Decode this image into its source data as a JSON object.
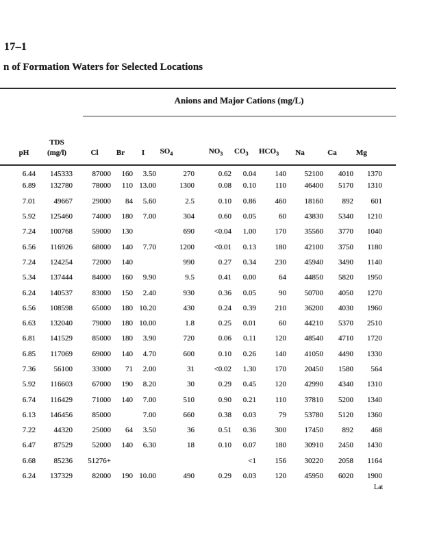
{
  "page": {
    "table_label": "17–1",
    "title": "n of Formation Waters for Selected Locations",
    "spanner": "Anions and Major Cations (mg/L)",
    "bottom_partial": "Lat"
  },
  "table": {
    "columns": [
      {
        "label": "pH"
      },
      {
        "label": "TDS",
        "label2": "(mg/l)"
      },
      {
        "label": "Cl"
      },
      {
        "label": "Br"
      },
      {
        "label": "I"
      },
      {
        "label": "SO",
        "sub": "4"
      },
      {
        "label": "NO",
        "sub": "3"
      },
      {
        "label": "CO",
        "sub": "3"
      },
      {
        "label": "HCO",
        "sub": "3"
      },
      {
        "label": "Na"
      },
      {
        "label": "Ca"
      },
      {
        "label": "Mg"
      }
    ],
    "rows": [
      [
        "6.44",
        "145333",
        "87000",
        "160",
        "3.50",
        "270",
        "0.62",
        "0.04",
        "140",
        "52100",
        "4010",
        "1370"
      ],
      [
        "6.89",
        "132780",
        "78000",
        "110",
        "13.00",
        "1300",
        "0.08",
        "0.10",
        "110",
        "46400",
        "5170",
        "1310"
      ],
      [
        "7.01",
        "49667",
        "29000",
        "84",
        "5.60",
        "2.5",
        "0.10",
        "0.86",
        "460",
        "18160",
        "892",
        "601"
      ],
      [
        "5.92",
        "125460",
        "74000",
        "180",
        "7.00",
        "304",
        "0.60",
        "0.05",
        "60",
        "43830",
        "5340",
        "1210"
      ],
      [
        "7.24",
        "100768",
        "59000",
        "130",
        "",
        "690",
        "<0.04",
        "1.00",
        "170",
        "35560",
        "3770",
        "1040"
      ],
      [
        "6.56",
        "116926",
        "68000",
        "140",
        "7.70",
        "1200",
        "<0.01",
        "0.13",
        "180",
        "42100",
        "3750",
        "1180"
      ],
      [
        "7.24",
        "124254",
        "72000",
        "140",
        "",
        "990",
        "0.27",
        "0.34",
        "230",
        "45940",
        "3490",
        "1140"
      ],
      [
        "5.34",
        "137444",
        "84000",
        "160",
        "9.90",
        "9.5",
        "0.41",
        "0.00",
        "64",
        "44850",
        "5820",
        "1950"
      ],
      [
        "6.24",
        "140537",
        "83000",
        "150",
        "2.40",
        "930",
        "0.36",
        "0.05",
        "90",
        "50700",
        "4050",
        "1270"
      ],
      [
        "6.56",
        "108598",
        "65000",
        "180",
        "10.20",
        "430",
        "0.24",
        "0.39",
        "210",
        "36200",
        "4030",
        "1960"
      ],
      [
        "6.63",
        "132040",
        "79000",
        "180",
        "10.00",
        "1.8",
        "0.25",
        "0.01",
        "60",
        "44210",
        "5370",
        "2510"
      ],
      [
        "6.81",
        "141529",
        "85000",
        "180",
        "3.90",
        "720",
        "0.06",
        "0.11",
        "120",
        "48540",
        "4710",
        "1720"
      ],
      [
        "6.85",
        "117069",
        "69000",
        "140",
        "4.70",
        "600",
        "0.10",
        "0.26",
        "140",
        "41050",
        "4490",
        "1330"
      ],
      [
        "7.36",
        "56100",
        "33000",
        "71",
        "2.00",
        "31",
        "<0.02",
        "1.30",
        "170",
        "20450",
        "1580",
        "564"
      ],
      [
        "5.92",
        "116603",
        "67000",
        "190",
        "8.20",
        "30",
        "0.29",
        "0.45",
        "120",
        "42990",
        "4340",
        "1310"
      ],
      [
        "6.74",
        "116429",
        "71000",
        "140",
        "7.00",
        "510",
        "0.90",
        "0.21",
        "110",
        "37810",
        "5200",
        "1340"
      ],
      [
        "6.13",
        "146456",
        "85000",
        "",
        "7.00",
        "660",
        "0.38",
        "0.03",
        "79",
        "53780",
        "5120",
        "1360"
      ],
      [
        "7.22",
        "44320",
        "25000",
        "64",
        "3.50",
        "36",
        "0.51",
        "0.36",
        "300",
        "17450",
        "892",
        "468"
      ],
      [
        "6.47",
        "87529",
        "52000",
        "140",
        "6.30",
        "18",
        "0.10",
        "0.07",
        "180",
        "30910",
        "2450",
        "1430"
      ],
      [
        "6.68",
        "85236",
        "51276+",
        "",
        "",
        "",
        "",
        "<1",
        "156",
        "30220",
        "2058",
        "1164"
      ],
      [
        "6.24",
        "137329",
        "82000",
        "190",
        "10.00",
        "490",
        "0.29",
        "0.03",
        "120",
        "45950",
        "6020",
        "1900"
      ]
    ]
  }
}
